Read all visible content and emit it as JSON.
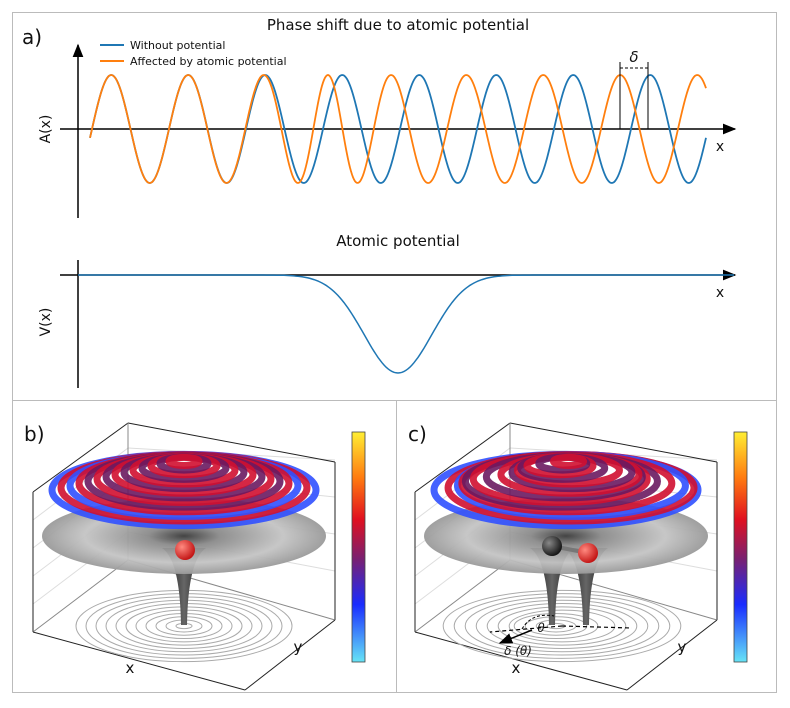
{
  "panel_a": {
    "label": "a)",
    "top": {
      "title": "Phase shift due to atomic potential",
      "y_label": "A(x)",
      "x_label": "x",
      "legend": [
        {
          "name": "Without potential",
          "color": "#1f77b4"
        },
        {
          "name": "Affected by atomic potential",
          "color": "#ff7f0e"
        }
      ],
      "annotation": "δ"
    },
    "bottom": {
      "title": "Atomic potential",
      "y_label": "V(x)",
      "x_label": "x",
      "color": "#1f77b4"
    }
  },
  "panel_b": {
    "label": "b)",
    "x_label": "x",
    "y_label": "y"
  },
  "panel_c": {
    "label": "c)",
    "x_label": "x",
    "y_label": "y",
    "annotations": [
      "θ",
      "δ (θ)"
    ]
  }
}
